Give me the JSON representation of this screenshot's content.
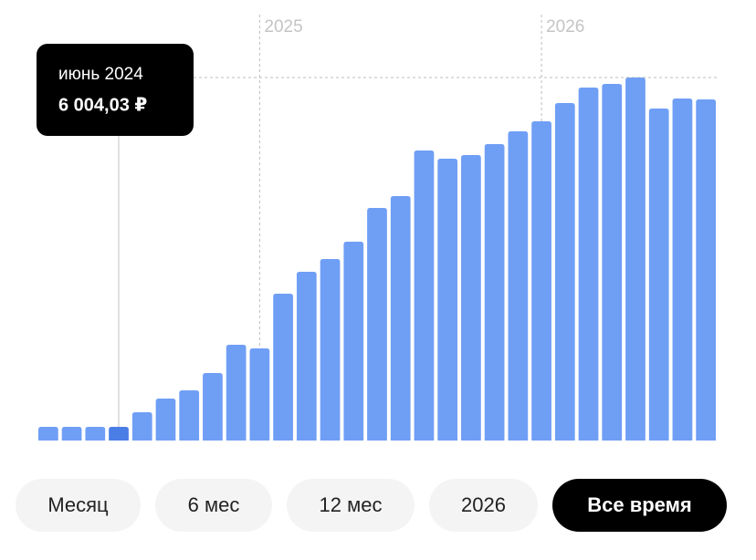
{
  "chart_data": {
    "type": "bar",
    "color": "#6f9ef5",
    "highlight_color": "#4a7de6",
    "categories": [
      null,
      null,
      null,
      "июнь 2024",
      null,
      null,
      null,
      null,
      null,
      "2025",
      null,
      null,
      null,
      null,
      null,
      null,
      null,
      null,
      null,
      null,
      null,
      "2026",
      null,
      null,
      null,
      null,
      null,
      null,
      null
    ],
    "values": [
      6000,
      6000,
      6000,
      6004.03,
      12400,
      18400,
      22000,
      29600,
      42000,
      40400,
      64400,
      74000,
      79600,
      87200,
      102000,
      107200,
      127200,
      123600,
      125200,
      130000,
      135600,
      140000,
      148000,
      154800,
      156400,
      159200,
      145600,
      150000,
      149600
    ],
    "value_labels": [
      null,
      null,
      null,
      "6 004,03 ₽",
      null,
      null,
      null,
      null,
      null,
      null,
      null,
      null,
      null,
      null,
      null,
      null,
      null,
      null,
      null,
      null,
      null,
      null,
      null,
      null,
      null,
      null,
      null,
      null,
      null
    ],
    "ylim": [
      0,
      160000
    ]
  },
  "tabs": [
    {
      "label": "Месяц",
      "active": false
    },
    {
      "label": "6 мес",
      "active": false
    },
    {
      "label": "12 мес",
      "active": false
    },
    {
      "label": "2026",
      "active": false
    },
    {
      "label": "Все время",
      "active": true
    }
  ]
}
